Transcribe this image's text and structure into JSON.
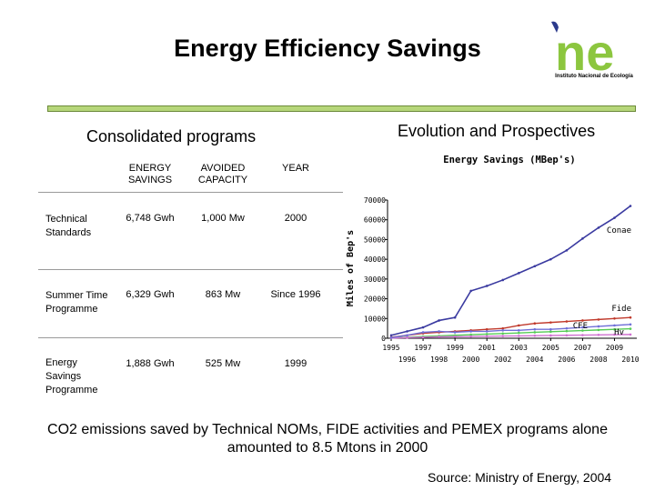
{
  "page": {
    "title": "Energy Efficiency Savings",
    "logo_text": "ne",
    "logo_subtitle": "Instituto Nacional de Ecología",
    "left_heading": "Consolidated programs",
    "right_heading": "Evolution and Prospectives",
    "footnote": "CO2 emissions saved by Technical NOMs, FIDE activities and PEMEX programs alone amounted to 8.5 Mtons in 2000",
    "source": "Source: Ministry of Energy, 2004"
  },
  "table": {
    "headers": [
      "ENERGY SAVINGS",
      "AVOIDED CAPACITY",
      "YEAR"
    ],
    "rows": [
      {
        "program": "Technical Standards",
        "savings": "6,748 Gwh",
        "capacity": "1,000 Mw",
        "year": "2000"
      },
      {
        "program": "Summer Time Programme",
        "savings": "6,329 Gwh",
        "capacity": "863 Mw",
        "year": "Since 1996"
      },
      {
        "program": "Energy Savings Programme",
        "savings": "1,888 Gwh",
        "capacity": "525 Mw",
        "year": "1999"
      }
    ]
  },
  "colors": {
    "conae": "#3a3aa0",
    "fide": "#c0392b",
    "cfe": "#55cc55",
    "hv": "#d070d0",
    "other": "#7070d8",
    "logo_green": "#8cc63f",
    "logo_blue": "#2b3a8c"
  },
  "chart_data": {
    "type": "line",
    "title": "Energy Savings (MBep's)",
    "xlabel": "",
    "ylabel": "Miles of Bep's",
    "ylim": [
      0,
      70000
    ],
    "yticks": [
      0,
      10000,
      20000,
      30000,
      40000,
      50000,
      60000,
      70000
    ],
    "x": [
      1995,
      1996,
      1997,
      1998,
      1999,
      2000,
      2001,
      2002,
      2003,
      2004,
      2005,
      2006,
      2007,
      2008,
      2009,
      2010
    ],
    "xtick_labels_upper": [
      "1995",
      "1997",
      "1999",
      "2001",
      "2003",
      "2005",
      "2007",
      "2009"
    ],
    "xtick_labels_lower": [
      "1996",
      "1998",
      "2000",
      "2002",
      "2004",
      "2006",
      "2008",
      "2010"
    ],
    "series": [
      {
        "name": "Conae",
        "values": [
          1500,
          3500,
          5500,
          9000,
          10500,
          24000,
          26500,
          29500,
          33000,
          36500,
          40000,
          44500,
          50500,
          56000,
          61000,
          67000
        ]
      },
      {
        "name": "Fide",
        "values": [
          500,
          1500,
          2500,
          3000,
          3500,
          4000,
          4500,
          5000,
          6500,
          7500,
          8000,
          8500,
          9000,
          9500,
          10000,
          10500
        ]
      },
      {
        "name": "CFE",
        "values": [
          200,
          500,
          900,
          1200,
          1500,
          1800,
          2100,
          2400,
          2700,
          3000,
          3300,
          3600,
          3900,
          4200,
          4500,
          4800
        ]
      },
      {
        "name": "Hv",
        "values": [
          100,
          300,
          500,
          700,
          800,
          900,
          1000,
          1100,
          1200,
          1300,
          1400,
          1500,
          1600,
          1700,
          1800,
          1900
        ]
      },
      {
        "name": "",
        "values": [
          300,
          1500,
          3000,
          3500,
          3000,
          3500,
          3500,
          4000,
          4000,
          4500,
          4500,
          5000,
          5500,
          6000,
          6500,
          7000
        ]
      }
    ]
  }
}
